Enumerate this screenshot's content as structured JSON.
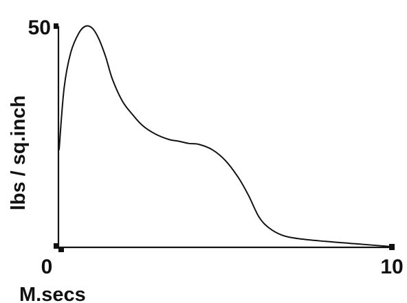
{
  "chart_data": {
    "type": "line",
    "title": "",
    "xlabel": "M.secs",
    "ylabel": "lbs / sq.inch",
    "xlim": [
      0,
      10
    ],
    "ylim": [
      0,
      50
    ],
    "x_tick_labels": [
      "0",
      "10"
    ],
    "y_tick_labels": [
      "50"
    ],
    "grid": false,
    "series": [
      {
        "color": "#111111",
        "x": [
          0,
          0.15,
          0.35,
          0.6,
          0.8,
          1.0,
          1.2,
          1.4,
          1.6,
          1.9,
          2.2,
          2.5,
          2.9,
          3.3,
          3.6,
          3.9,
          4.2,
          4.6,
          5.0,
          5.4,
          5.7,
          6.0,
          6.3,
          6.7,
          7.2,
          8.0,
          9.0,
          10.0
        ],
        "y": [
          22,
          36,
          44,
          48.5,
          50,
          49.5,
          47,
          43,
          38,
          33,
          30,
          27.5,
          25.5,
          24.3,
          23.9,
          23.4,
          23.2,
          22,
          19.5,
          15.5,
          11.5,
          6.8,
          4.3,
          2.6,
          1.8,
          1.2,
          0.6,
          0
        ]
      }
    ]
  }
}
